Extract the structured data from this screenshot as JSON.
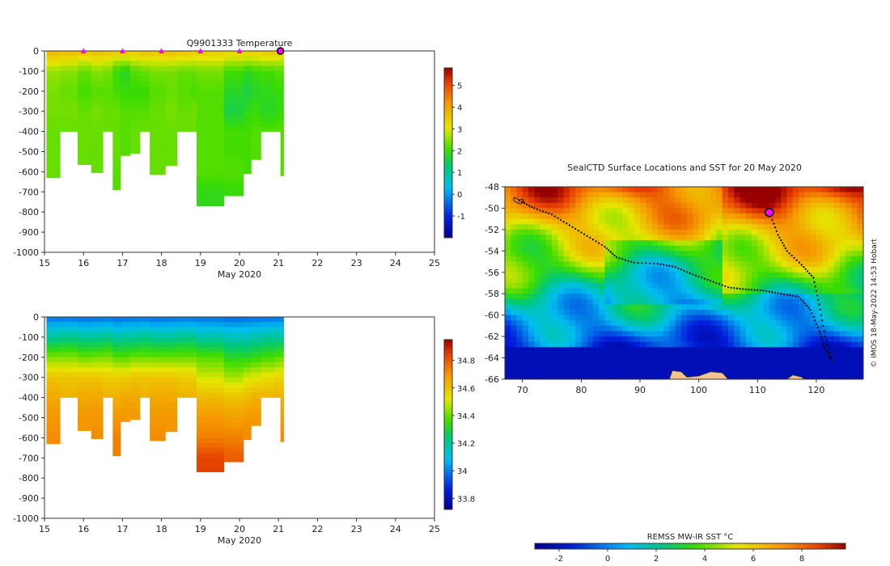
{
  "chart_data": [
    {
      "type": "heatmap",
      "title": "Q9901333  Temperature",
      "xlabel": "May 2020",
      "ylabel": "",
      "x_ticks": [
        15,
        16,
        17,
        18,
        19,
        20,
        21,
        22,
        23,
        24,
        25
      ],
      "xlim": [
        15,
        25
      ],
      "ylim": [
        -1000,
        0
      ],
      "y_ticks": [
        0,
        -100,
        -200,
        -300,
        -400,
        -500,
        -600,
        -700,
        -800,
        -900,
        -1000
      ],
      "colorbar": {
        "range": [
          -2,
          5.8
        ],
        "ticks": [
          -1,
          0,
          1,
          2,
          3,
          4,
          5
        ],
        "palette": "jet"
      },
      "surface_markers_x": [
        16,
        17,
        18,
        19,
        20
      ],
      "current_marker_x": 21.05,
      "profiles": [
        {
          "x": 15.05,
          "depth": 630,
          "v": [
            3.8,
            2.6,
            2.4,
            2.4,
            2.3,
            2.3,
            2.3
          ]
        },
        {
          "x": 15.4,
          "depth": 400,
          "v": [
            3.7,
            2.5,
            2.3,
            2.4,
            2.3
          ]
        },
        {
          "x": 15.85,
          "depth": 565,
          "v": [
            3.6,
            2.3,
            2.1,
            2.3,
            2.3,
            2.3
          ]
        },
        {
          "x": 16.2,
          "depth": 605,
          "v": [
            3.7,
            2.5,
            2.2,
            2.4,
            2.3,
            2.3,
            2.3
          ]
        },
        {
          "x": 16.5,
          "depth": 400,
          "v": [
            3.6,
            2.4,
            2.2,
            2.3,
            2.3
          ]
        },
        {
          "x": 16.75,
          "depth": 690,
          "v": [
            3.5,
            2.0,
            2.1,
            2.3,
            2.3,
            2.3,
            2.2
          ]
        },
        {
          "x": 16.95,
          "depth": 520,
          "v": [
            3.6,
            1.8,
            2.0,
            2.2,
            2.2,
            2.2
          ]
        },
        {
          "x": 17.2,
          "depth": 510,
          "v": [
            3.5,
            2.2,
            2.0,
            2.2,
            2.3,
            2.3
          ]
        },
        {
          "x": 17.45,
          "depth": 400,
          "v": [
            3.7,
            2.3,
            2.0,
            2.2,
            2.3
          ]
        },
        {
          "x": 17.7,
          "depth": 615,
          "v": [
            3.6,
            2.4,
            2.2,
            2.3,
            2.3,
            2.3,
            2.3
          ]
        },
        {
          "x": 18.1,
          "depth": 570,
          "v": [
            3.7,
            2.4,
            2.3,
            2.4,
            2.3,
            2.3
          ]
        },
        {
          "x": 18.4,
          "depth": 400,
          "v": [
            3.6,
            2.3,
            2.2,
            2.3,
            2.3
          ]
        },
        {
          "x": 18.75,
          "depth": 400,
          "v": [
            3.5,
            2.3,
            2.1,
            2.4,
            2.3
          ]
        },
        {
          "x": 18.9,
          "depth": 770,
          "v": [
            3.5,
            2.4,
            2.2,
            2.2,
            2.2,
            2.2,
            2.2,
            1.9
          ]
        },
        {
          "x": 19.6,
          "depth": 720,
          "v": [
            3.4,
            2.1,
            1.8,
            1.6,
            2.1,
            2.1,
            2.2,
            2.0
          ]
        },
        {
          "x": 20.1,
          "depth": 610,
          "v": [
            3.5,
            1.9,
            1.6,
            1.9,
            2.1,
            2.1,
            2.1
          ]
        },
        {
          "x": 20.3,
          "depth": 540,
          "v": [
            3.5,
            2.0,
            1.8,
            2.0,
            2.2,
            2.2
          ]
        },
        {
          "x": 20.55,
          "depth": 400,
          "v": [
            3.6,
            2.1,
            1.9,
            1.8,
            2.2
          ]
        },
        {
          "x": 20.9,
          "depth": 400,
          "v": [
            3.5,
            2.2,
            2.0,
            1.9,
            2.2
          ]
        },
        {
          "x": 21.05,
          "depth": 620,
          "v": [
            3.4,
            2.2,
            2.0,
            2.0,
            2.2,
            2.2,
            2.2
          ]
        }
      ]
    },
    {
      "type": "heatmap",
      "title": "",
      "xlabel": "May 2020",
      "ylabel": "",
      "x_ticks": [
        15,
        16,
        17,
        18,
        19,
        20,
        21,
        22,
        23,
        24,
        25
      ],
      "xlim": [
        15,
        25
      ],
      "ylim": [
        -1000,
        0
      ],
      "y_ticks": [
        0,
        -100,
        -200,
        -300,
        -400,
        -500,
        -600,
        -700,
        -800,
        -900,
        -1000
      ],
      "colorbar": {
        "range": [
          33.72,
          34.95
        ],
        "ticks": [
          33.8,
          34,
          34.2,
          34.4,
          34.6,
          34.8
        ],
        "palette": "jet"
      },
      "profiles": [
        {
          "x": 15.05,
          "depth": 630,
          "v": [
            33.98,
            34.2,
            34.42,
            34.6,
            34.66,
            34.7,
            34.72
          ]
        },
        {
          "x": 15.4,
          "depth": 400,
          "v": [
            33.98,
            34.22,
            34.42,
            34.6,
            34.64
          ]
        },
        {
          "x": 15.85,
          "depth": 565,
          "v": [
            33.97,
            34.2,
            34.4,
            34.6,
            34.66,
            34.7
          ]
        },
        {
          "x": 16.2,
          "depth": 605,
          "v": [
            33.98,
            34.2,
            34.41,
            34.6,
            34.66,
            34.7,
            34.72
          ]
        },
        {
          "x": 16.5,
          "depth": 400,
          "v": [
            33.98,
            34.22,
            34.42,
            34.58,
            34.64
          ]
        },
        {
          "x": 16.75,
          "depth": 690,
          "v": [
            33.97,
            34.18,
            34.38,
            34.58,
            34.64,
            34.7,
            34.74
          ]
        },
        {
          "x": 16.95,
          "depth": 520,
          "v": [
            33.98,
            34.2,
            34.38,
            34.58,
            34.66,
            34.7
          ]
        },
        {
          "x": 17.2,
          "depth": 510,
          "v": [
            33.98,
            34.2,
            34.4,
            34.6,
            34.66,
            34.7
          ]
        },
        {
          "x": 17.45,
          "depth": 400,
          "v": [
            33.98,
            34.22,
            34.4,
            34.6,
            34.64
          ]
        },
        {
          "x": 17.7,
          "depth": 615,
          "v": [
            33.97,
            34.2,
            34.4,
            34.6,
            34.66,
            34.7,
            34.72
          ]
        },
        {
          "x": 18.1,
          "depth": 570,
          "v": [
            33.98,
            34.2,
            34.4,
            34.6,
            34.66,
            34.7
          ]
        },
        {
          "x": 18.4,
          "depth": 400,
          "v": [
            33.98,
            34.22,
            34.4,
            34.58,
            34.64
          ]
        },
        {
          "x": 18.75,
          "depth": 400,
          "v": [
            33.98,
            34.22,
            34.4,
            34.58,
            34.64
          ]
        },
        {
          "x": 18.9,
          "depth": 770,
          "v": [
            33.98,
            34.18,
            34.38,
            34.5,
            34.62,
            34.7,
            34.74,
            34.84
          ]
        },
        {
          "x": 19.6,
          "depth": 720,
          "v": [
            33.97,
            34.16,
            34.32,
            34.46,
            34.6,
            34.68,
            34.74,
            34.8
          ]
        },
        {
          "x": 20.1,
          "depth": 610,
          "v": [
            33.98,
            34.16,
            34.32,
            34.5,
            34.62,
            34.7,
            34.72
          ]
        },
        {
          "x": 20.3,
          "depth": 540,
          "v": [
            33.98,
            34.18,
            34.34,
            34.52,
            34.64,
            34.7
          ]
        },
        {
          "x": 20.55,
          "depth": 400,
          "v": [
            33.98,
            34.2,
            34.36,
            34.54,
            34.64
          ]
        },
        {
          "x": 20.9,
          "depth": 400,
          "v": [
            33.98,
            34.2,
            34.38,
            34.56,
            34.64
          ]
        },
        {
          "x": 21.05,
          "depth": 620,
          "v": [
            33.98,
            34.2,
            34.4,
            34.56,
            34.64,
            34.7,
            34.72
          ]
        }
      ]
    },
    {
      "type": "heatmap",
      "title": "SealCTD Surface Locations and SST for 20 May 2020",
      "xlabel": "",
      "ylabel": "",
      "xlim": [
        67,
        128
      ],
      "ylim": [
        -66,
        -48
      ],
      "x_ticks": [
        70,
        80,
        90,
        100,
        110,
        120
      ],
      "y_ticks": [
        -48,
        -50,
        -52,
        -54,
        -56,
        -58,
        -60,
        -62,
        -64,
        -66
      ],
      "colorbar": {
        "label": "REMSS MW-IR SST °C",
        "range": [
          -3,
          9.8
        ],
        "ticks": [
          -2,
          0,
          2,
          4,
          6,
          8
        ],
        "palette": "jet"
      },
      "track_start": [
        69.5,
        -49.3
      ],
      "current_position": [
        112,
        -50.4
      ],
      "track": [
        [
          69.5,
          -49.3
        ],
        [
          72,
          -50
        ],
        [
          75,
          -50.6
        ],
        [
          78,
          -51.6
        ],
        [
          81,
          -52.6
        ],
        [
          84,
          -53.6
        ],
        [
          86,
          -54.6
        ],
        [
          89,
          -55.1
        ],
        [
          93,
          -55.2
        ],
        [
          96,
          -55.5
        ],
        [
          99,
          -56.2
        ],
        [
          102,
          -56.8
        ],
        [
          105,
          -57.4
        ],
        [
          108,
          -57.6
        ],
        [
          111,
          -57.7
        ],
        [
          114,
          -58
        ],
        [
          117,
          -58.3
        ],
        [
          119,
          -59.5
        ],
        [
          120.5,
          -61.5
        ],
        [
          121.3,
          -63
        ],
        [
          122.7,
          -64.3
        ],
        [
          121.5,
          -62
        ],
        [
          120.5,
          -59
        ],
        [
          119.5,
          -56.5
        ],
        [
          117.5,
          -55.3
        ],
        [
          115,
          -54
        ],
        [
          113.5,
          -52.5
        ],
        [
          112,
          -50.4
        ]
      ],
      "land": [
        [
          [
            95,
            -66
          ],
          [
            95.5,
            -65.2
          ],
          [
            97,
            -65.3
          ],
          [
            98,
            -65.8
          ],
          [
            100,
            -65.7
          ],
          [
            102,
            -65.3
          ],
          [
            104,
            -65.4
          ],
          [
            105,
            -66
          ]
        ],
        [
          [
            115,
            -66
          ],
          [
            116,
            -65.6
          ],
          [
            117.5,
            -65.8
          ],
          [
            118,
            -66
          ]
        ]
      ]
    }
  ],
  "watermark": "© IMOS 18-May-2022 14:53 Hobart"
}
